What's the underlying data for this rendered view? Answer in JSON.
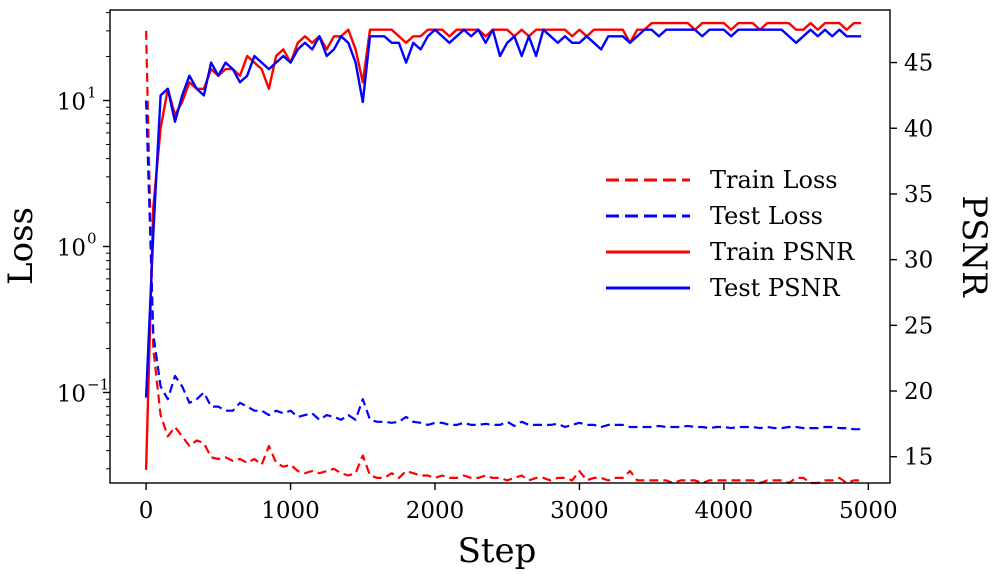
{
  "chart_data": {
    "type": "line",
    "xlabel": "Step",
    "ylabel_left": "Loss",
    "ylabel_right": "PSNR",
    "xlim": [
      -250,
      5150
    ],
    "ylim_left_log10": [
      -1.62,
      1.62
    ],
    "ylim_right": [
      13,
      49
    ],
    "left_scale": "log",
    "grid": false,
    "legend_position": "center-right",
    "x_ticks": [
      0,
      1000,
      2000,
      3000,
      4000,
      5000
    ],
    "x_tick_labels": [
      "0",
      "1000",
      "2000",
      "3000",
      "4000",
      "5000"
    ],
    "left_ticks_log10": [
      1,
      0,
      -1
    ],
    "left_tick_labels": [
      {
        "base": "10",
        "exp": "1"
      },
      {
        "base": "10",
        "exp": "0"
      },
      {
        "base": "10",
        "exp": "−1"
      }
    ],
    "right_ticks": [
      15,
      20,
      25,
      30,
      35,
      40,
      45
    ],
    "right_tick_labels": [
      "15",
      "20",
      "25",
      "30",
      "35",
      "40",
      "45"
    ],
    "x": [
      0,
      50,
      100,
      150,
      200,
      250,
      300,
      350,
      400,
      450,
      500,
      550,
      600,
      650,
      700,
      750,
      800,
      850,
      900,
      950,
      1000,
      1050,
      1100,
      1150,
      1200,
      1250,
      1300,
      1350,
      1400,
      1450,
      1500,
      1550,
      1600,
      1650,
      1700,
      1750,
      1800,
      1850,
      1900,
      1950,
      2000,
      2050,
      2100,
      2150,
      2200,
      2250,
      2300,
      2350,
      2400,
      2450,
      2500,
      2550,
      2600,
      2650,
      2700,
      2750,
      2800,
      2850,
      2900,
      2950,
      3000,
      3050,
      3100,
      3150,
      3200,
      3250,
      3300,
      3350,
      3400,
      3450,
      3500,
      3550,
      3600,
      3650,
      3700,
      3750,
      3800,
      3850,
      3900,
      3950,
      4000,
      4050,
      4100,
      4150,
      4200,
      4250,
      4300,
      4350,
      4400,
      4450,
      4500,
      4550,
      4600,
      4650,
      4700,
      4750,
      4800,
      4850,
      4900,
      4950
    ],
    "series": [
      {
        "name": "Train Loss",
        "axis": "left",
        "color": "#ff0000",
        "dash": "dashed",
        "values": [
          30,
          0.2,
          0.07,
          0.05,
          0.058,
          0.05,
          0.043,
          0.047,
          0.045,
          0.036,
          0.035,
          0.036,
          0.034,
          0.035,
          0.033,
          0.035,
          0.032,
          0.043,
          0.033,
          0.031,
          0.032,
          0.029,
          0.028,
          0.029,
          0.028,
          0.029,
          0.03,
          0.028,
          0.027,
          0.028,
          0.037,
          0.027,
          0.026,
          0.026,
          0.028,
          0.026,
          0.029,
          0.028,
          0.027,
          0.027,
          0.026,
          0.027,
          0.026,
          0.026,
          0.027,
          0.026,
          0.026,
          0.027,
          0.026,
          0.026,
          0.025,
          0.026,
          0.027,
          0.025,
          0.026,
          0.026,
          0.025,
          0.026,
          0.026,
          0.025,
          0.029,
          0.025,
          0.026,
          0.026,
          0.025,
          0.026,
          0.026,
          0.029,
          0.025,
          0.025,
          0.025,
          0.025,
          0.025,
          0.024,
          0.025,
          0.025,
          0.025,
          0.024,
          0.025,
          0.025,
          0.025,
          0.025,
          0.025,
          0.025,
          0.025,
          0.024,
          0.025,
          0.025,
          0.025,
          0.024,
          0.026,
          0.026,
          0.024,
          0.024,
          0.025,
          0.025,
          0.026,
          0.024,
          0.025,
          0.025
        ]
      },
      {
        "name": "Test Loss",
        "axis": "left",
        "color": "#0000ff",
        "dash": "dashed",
        "values": [
          10,
          0.25,
          0.11,
          0.09,
          0.13,
          0.11,
          0.085,
          0.09,
          0.1,
          0.08,
          0.08,
          0.075,
          0.075,
          0.085,
          0.08,
          0.075,
          0.075,
          0.07,
          0.075,
          0.072,
          0.075,
          0.068,
          0.07,
          0.072,
          0.065,
          0.07,
          0.068,
          0.065,
          0.07,
          0.065,
          0.09,
          0.065,
          0.063,
          0.063,
          0.062,
          0.063,
          0.068,
          0.063,
          0.062,
          0.06,
          0.062,
          0.062,
          0.06,
          0.06,
          0.062,
          0.06,
          0.06,
          0.061,
          0.06,
          0.06,
          0.063,
          0.059,
          0.063,
          0.06,
          0.06,
          0.06,
          0.06,
          0.061,
          0.058,
          0.06,
          0.062,
          0.06,
          0.06,
          0.058,
          0.06,
          0.06,
          0.06,
          0.058,
          0.058,
          0.058,
          0.058,
          0.059,
          0.058,
          0.058,
          0.058,
          0.059,
          0.058,
          0.058,
          0.057,
          0.058,
          0.058,
          0.057,
          0.058,
          0.058,
          0.058,
          0.057,
          0.058,
          0.057,
          0.057,
          0.058,
          0.058,
          0.057,
          0.057,
          0.057,
          0.058,
          0.058,
          0.057,
          0.057,
          0.056,
          0.056
        ]
      },
      {
        "name": "Train PSNR",
        "axis": "right",
        "color": "#ff0000",
        "dash": "solid",
        "values": [
          14,
          34,
          40,
          43,
          41,
          42,
          43.5,
          43,
          43,
          44.5,
          44,
          44.5,
          44.5,
          44,
          45.5,
          45,
          44.5,
          43,
          45.5,
          46,
          45,
          46.5,
          47,
          46.5,
          47,
          46,
          47,
          47,
          47.5,
          46,
          43.5,
          47.5,
          47.5,
          47.5,
          47.5,
          47,
          46.5,
          47,
          47,
          47.5,
          47.5,
          47.5,
          47,
          47.5,
          47.5,
          47.5,
          47.5,
          47,
          47.5,
          47.5,
          47.5,
          47,
          47.5,
          47,
          47.5,
          47.5,
          47.5,
          47.5,
          47.5,
          47,
          47.5,
          47,
          47.5,
          47.5,
          47.5,
          47.5,
          47.5,
          46.5,
          47.5,
          47.5,
          48,
          48,
          48,
          48,
          48,
          48,
          47.5,
          48,
          48,
          48,
          48,
          47.5,
          48,
          48,
          48,
          47.5,
          48,
          48,
          48,
          48,
          47.5,
          47.5,
          48,
          47.5,
          48,
          48,
          48,
          47.5,
          48,
          48
        ]
      },
      {
        "name": "Test PSNR",
        "axis": "right",
        "color": "#0000ff",
        "dash": "solid",
        "values": [
          19.5,
          32,
          42.5,
          43,
          40.5,
          42.5,
          44,
          43,
          42.5,
          45,
          44,
          45,
          44.5,
          43.5,
          44,
          45.5,
          45,
          44.5,
          45,
          45.5,
          45,
          46,
          46.5,
          46,
          47,
          45.5,
          46,
          47,
          46.5,
          45,
          42,
          47,
          47,
          47,
          46.5,
          46.5,
          45,
          46.5,
          46,
          47,
          47.5,
          47,
          46.5,
          47,
          47.5,
          47,
          47.5,
          46.5,
          47.5,
          45.5,
          46.5,
          47,
          45.5,
          47,
          45.5,
          47.5,
          47,
          46.5,
          47,
          46.5,
          46.5,
          47,
          46.5,
          46,
          47,
          47,
          47,
          46.5,
          47,
          47.5,
          47.5,
          47,
          47.5,
          47.5,
          47.5,
          47.5,
          47.5,
          47,
          47.5,
          47.5,
          47.5,
          47,
          47.5,
          47.5,
          47.5,
          47.5,
          47.5,
          47.5,
          47.5,
          47,
          46.5,
          47,
          47.5,
          47,
          47.5,
          47,
          47.5,
          47,
          47,
          47
        ]
      }
    ]
  }
}
